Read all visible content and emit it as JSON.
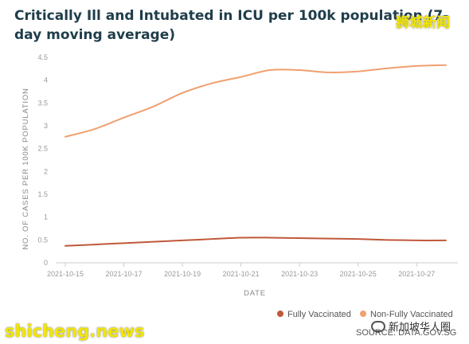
{
  "watermarks": {
    "top_right": "狮城新闻",
    "bottom_left": "shicheng.news",
    "bottom_right": "新加坡华人圈"
  },
  "source": "SOURCE: DATA.GOV.SG",
  "colors": {
    "fully_vaccinated": "#c0583a",
    "non_fully_vaccinated": "#f0a070",
    "title": "#1f3d4a",
    "axis_text": "#999999",
    "axis_line": "#cccccc"
  },
  "chart_data": {
    "type": "line",
    "title": "Critically Ill and Intubated in ICU per 100k population (7-day moving average)",
    "xlabel": "DATE",
    "ylabel": "NO. OF CASES PER 100K POPULATION",
    "ylim": [
      0,
      4.5
    ],
    "yticks": [
      "0",
      "0.5",
      "1",
      "1.5",
      "2",
      "2.5",
      "3",
      "3.5",
      "4",
      "4.5"
    ],
    "x": [
      "2021-10-15",
      "2021-10-16",
      "2021-10-17",
      "2021-10-18",
      "2021-10-19",
      "2021-10-20",
      "2021-10-21",
      "2021-10-22",
      "2021-10-23",
      "2021-10-24",
      "2021-10-25",
      "2021-10-26",
      "2021-10-27",
      "2021-10-28"
    ],
    "xtick_labels": [
      "2021-10-15",
      "2021-10-17",
      "2021-10-19",
      "2021-10-21",
      "2021-10-23",
      "2021-10-25",
      "2021-10-27"
    ],
    "legend_position": "bottom-right",
    "series": [
      {
        "name": "Fully Vaccinated",
        "values": [
          0.37,
          0.4,
          0.43,
          0.46,
          0.49,
          0.52,
          0.55,
          0.55,
          0.54,
          0.53,
          0.52,
          0.5,
          0.49,
          0.49
        ]
      },
      {
        "name": "Non-Fully Vaccinated",
        "values": [
          2.76,
          2.93,
          3.18,
          3.42,
          3.72,
          3.93,
          4.07,
          4.22,
          4.22,
          4.17,
          4.19,
          4.26,
          4.31,
          4.33
        ]
      }
    ]
  }
}
